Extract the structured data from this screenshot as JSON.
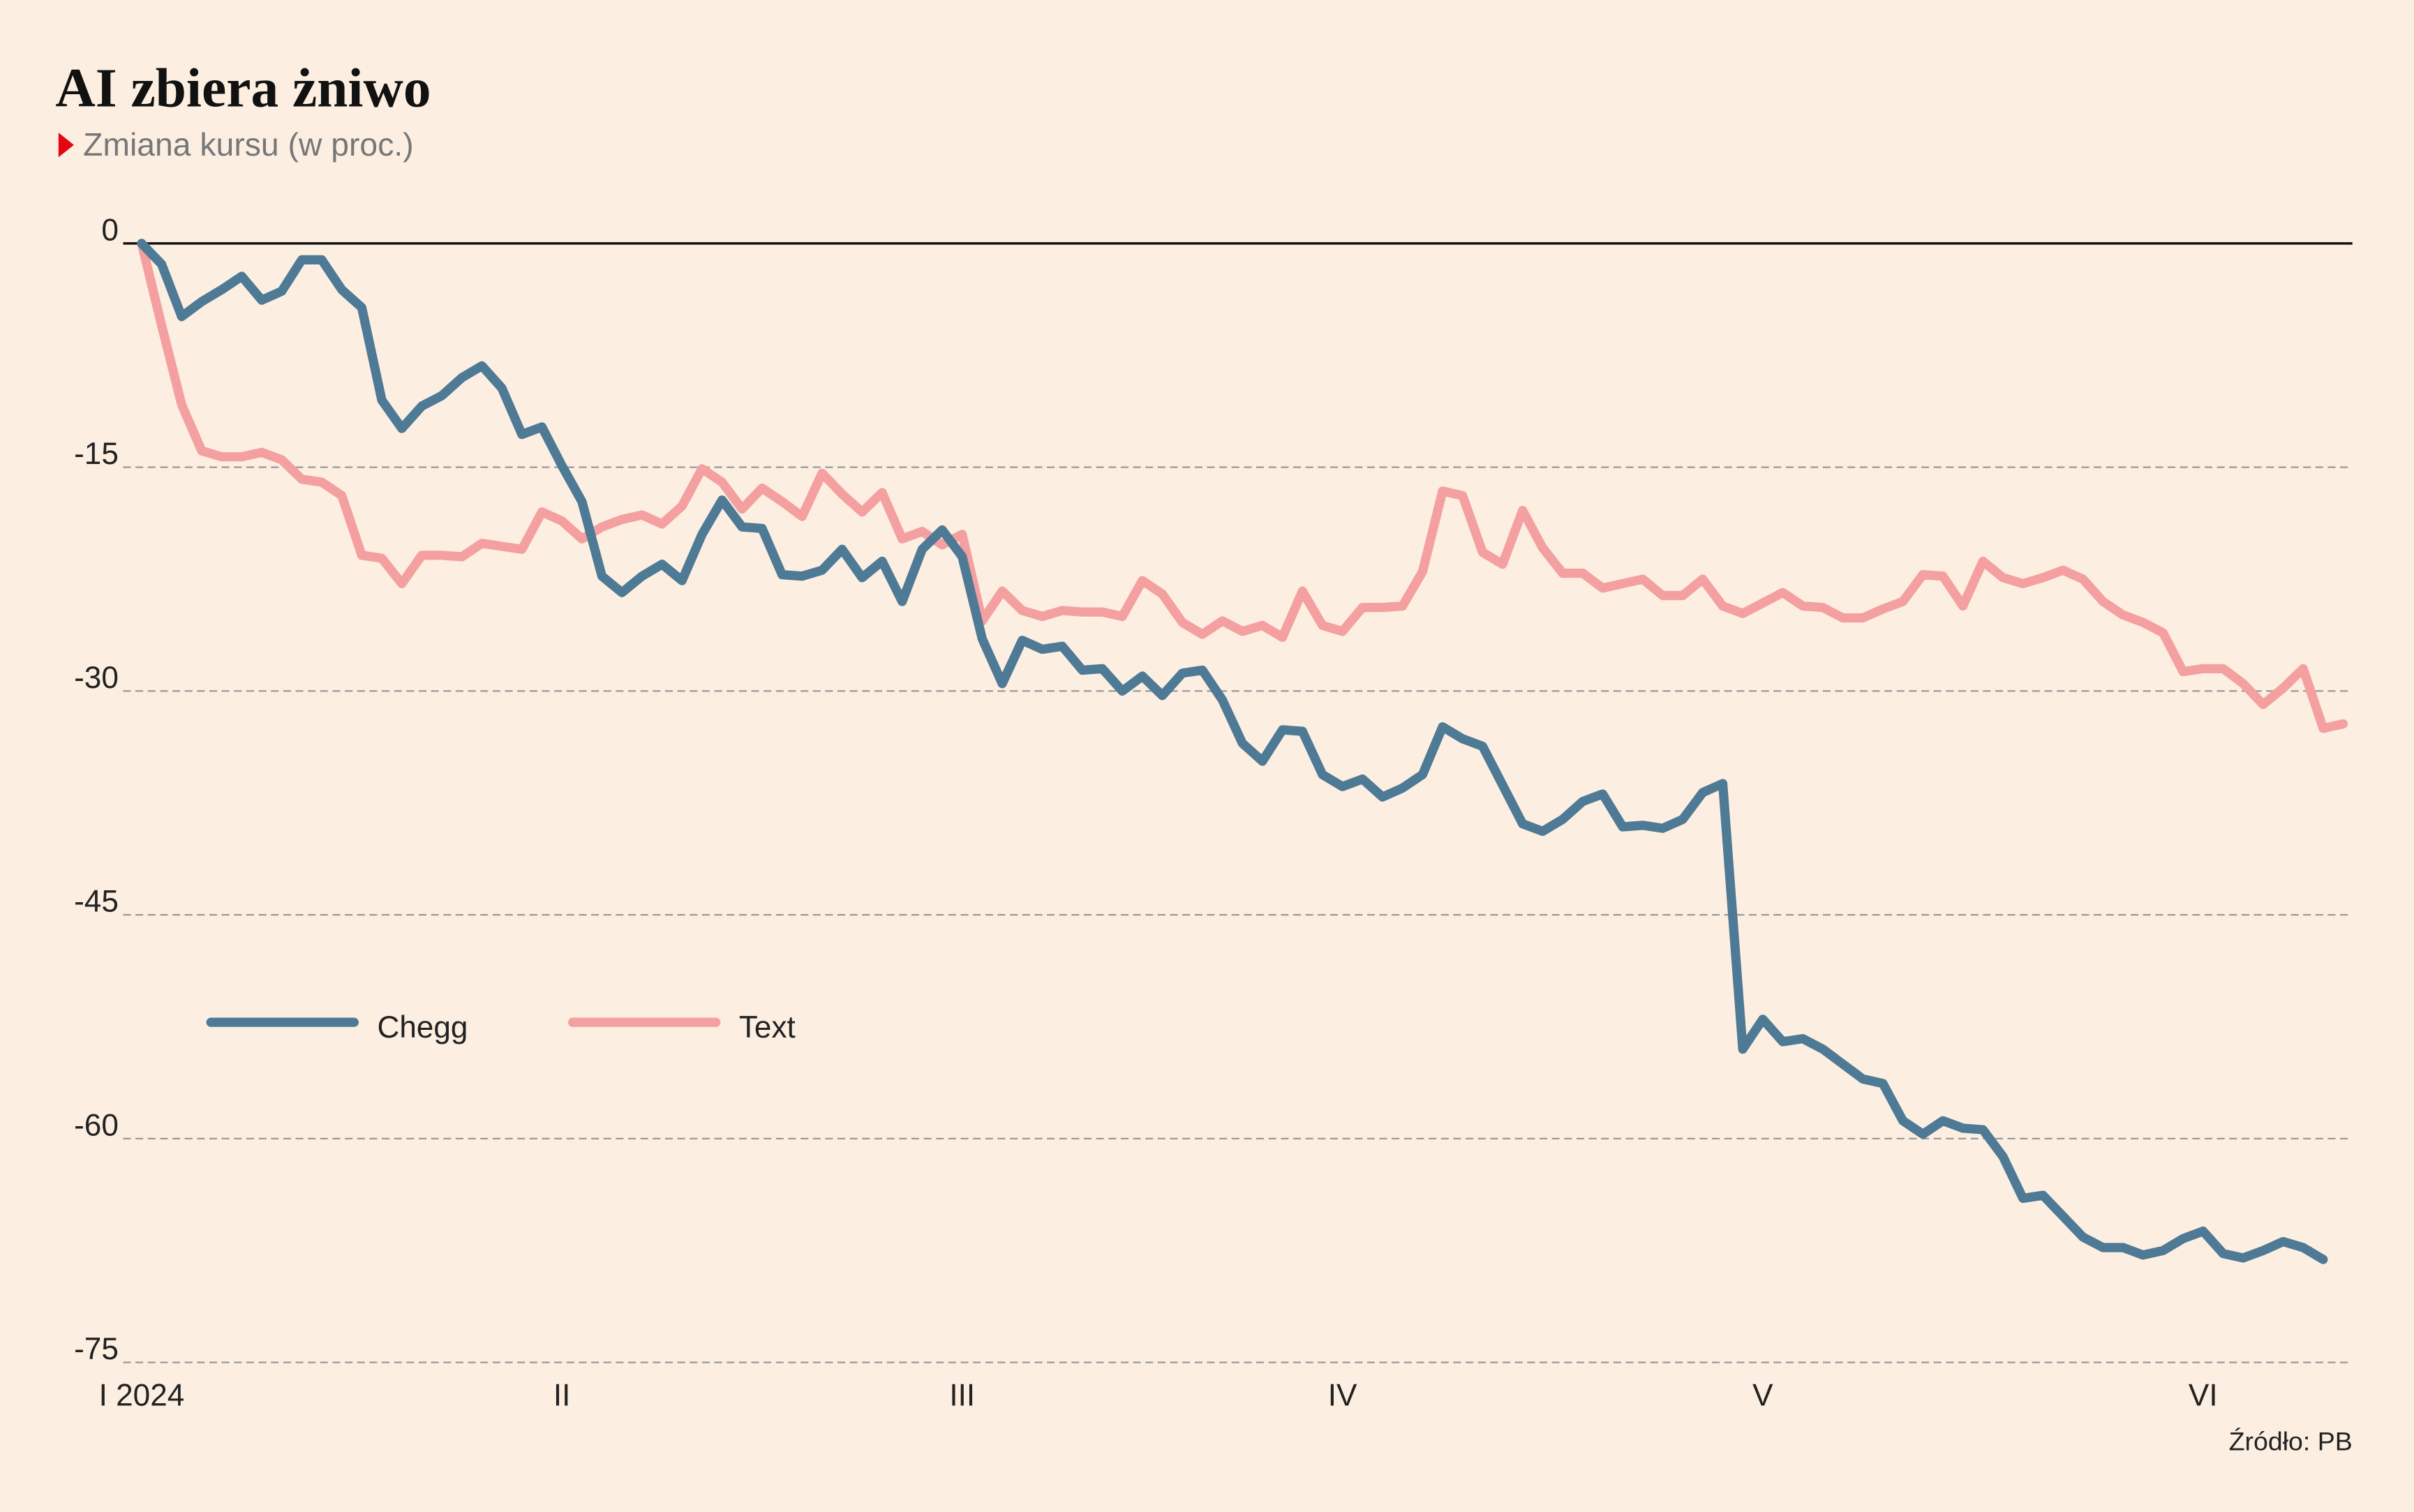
{
  "chart_data": {
    "type": "line",
    "title": "AI zbiera żniwo",
    "subtitle": "Zmiana kursu (w proc.)",
    "source": "Źródło: PB",
    "categories": [
      "I 2024",
      null,
      null,
      null,
      null,
      null,
      null,
      null,
      null,
      null,
      null,
      null,
      null,
      null,
      null,
      null,
      null,
      null,
      null,
      null,
      null,
      "II",
      null,
      null,
      null,
      null,
      null,
      null,
      null,
      null,
      null,
      null,
      null,
      null,
      null,
      null,
      null,
      null,
      null,
      null,
      null,
      "III",
      null,
      null,
      null,
      null,
      null,
      null,
      null,
      null,
      null,
      null,
      null,
      null,
      null,
      null,
      null,
      null,
      null,
      null,
      "IV",
      null,
      null,
      null,
      null,
      null,
      null,
      null,
      null,
      null,
      null,
      null,
      null,
      null,
      null,
      null,
      null,
      null,
      null,
      null,
      null,
      "V",
      null,
      null,
      null,
      null,
      null,
      null,
      null,
      null,
      null,
      null,
      null,
      null,
      null,
      null,
      null,
      null,
      null,
      null,
      null,
      null,
      null,
      "VI",
      null,
      null,
      null,
      null,
      null,
      null,
      null
    ],
    "series": [
      {
        "name": "Chegg",
        "color": "#4e7a96",
        "values": [
          0,
          -1.4,
          -4.9,
          -3.9,
          -3.1,
          -2.2,
          -3.8,
          -3.2,
          -1.1,
          -1.1,
          -3.1,
          -4.3,
          -10.5,
          -12.4,
          -10.9,
          -10.2,
          -9.0,
          -8.2,
          -9.7,
          -12.8,
          -12.3,
          -14.9,
          -17.3,
          -22.3,
          -23.4,
          -22.3,
          -21.5,
          -22.6,
          -19.5,
          -17.2,
          -19.0,
          -19.1,
          -22.2,
          -22.3,
          -21.9,
          -20.5,
          -22.4,
          -21.3,
          -24.0,
          -20.5,
          -19.2,
          -21.0,
          -26.5,
          -29.5,
          -26.6,
          -27.2,
          -27.0,
          -28.6,
          -28.5,
          -30.0,
          -29.0,
          -30.3,
          -28.8,
          -28.6,
          -30.6,
          -33.5,
          -34.7,
          -32.6,
          -32.7,
          -35.6,
          -36.4,
          -35.9,
          -37.1,
          -36.5,
          -35.6,
          -32.4,
          -33.2,
          -33.7,
          -36.3,
          -38.9,
          -39.4,
          -38.6,
          -37.4,
          -36.9,
          -39.1,
          -39.0,
          -39.2,
          -38.6,
          -36.8,
          -36.2,
          -54.0,
          -52.0,
          -53.5,
          -53.3,
          -54.0,
          -55.0,
          -56.0,
          -56.3,
          -58.8,
          -59.7,
          -58.8,
          -59.3,
          -59.4,
          -61.2,
          -64.0,
          -63.8,
          -65.2,
          -66.6,
          -67.3,
          -67.3,
          -67.8,
          -67.5,
          -66.7,
          -66.2,
          -67.7,
          -68.0,
          -67.5,
          -66.9,
          -67.3,
          -68.1,
          null
        ]
      },
      {
        "name": "Text",
        "color": "#f4a0a0",
        "values": [
          0,
          -5.5,
          -10.8,
          -13.9,
          -14.3,
          -14.3,
          -14.0,
          -14.5,
          -15.8,
          -16.0,
          -16.9,
          -20.9,
          -21.1,
          -22.8,
          -20.9,
          -20.9,
          -21.0,
          -20.1,
          -20.3,
          -20.5,
          -18.0,
          -18.6,
          -19.8,
          -19.0,
          -18.5,
          -18.2,
          -18.8,
          -17.6,
          -15.1,
          -16.0,
          -17.8,
          -16.4,
          -17.3,
          -18.3,
          -15.4,
          -16.8,
          -18.0,
          -16.7,
          -19.8,
          -19.3,
          -20.2,
          -19.5,
          -25.3,
          -23.3,
          -24.6,
          -25.0,
          -24.6,
          -24.7,
          -24.7,
          -25.0,
          -22.6,
          -23.5,
          -25.4,
          -26.2,
          -25.3,
          -26.0,
          -25.6,
          -26.4,
          -23.3,
          -25.6,
          -26.0,
          -24.4,
          -24.4,
          -24.3,
          -22.0,
          -16.6,
          -16.9,
          -20.7,
          -21.5,
          -17.9,
          -20.4,
          -22.1,
          -22.1,
          -23.1,
          -22.8,
          -22.5,
          -23.6,
          -23.6,
          -22.5,
          -24.3,
          -24.8,
          -24.1,
          -23.4,
          -24.3,
          -24.4,
          -25.1,
          -25.1,
          -24.5,
          -24.0,
          -22.2,
          -22.3,
          -24.3,
          -21.3,
          -22.4,
          -22.8,
          -22.4,
          -21.9,
          -22.5,
          -24.0,
          -24.9,
          -25.4,
          -26.1,
          -28.7,
          -28.5,
          -28.5,
          -29.5,
          -30.9,
          -29.8,
          -28.5,
          -32.5,
          -32.2
        ]
      }
    ],
    "ylim": [
      -75,
      0
    ],
    "yticks": [
      0,
      -15,
      -30,
      -45,
      -60,
      -75
    ],
    "grid": true,
    "legend": "left"
  }
}
